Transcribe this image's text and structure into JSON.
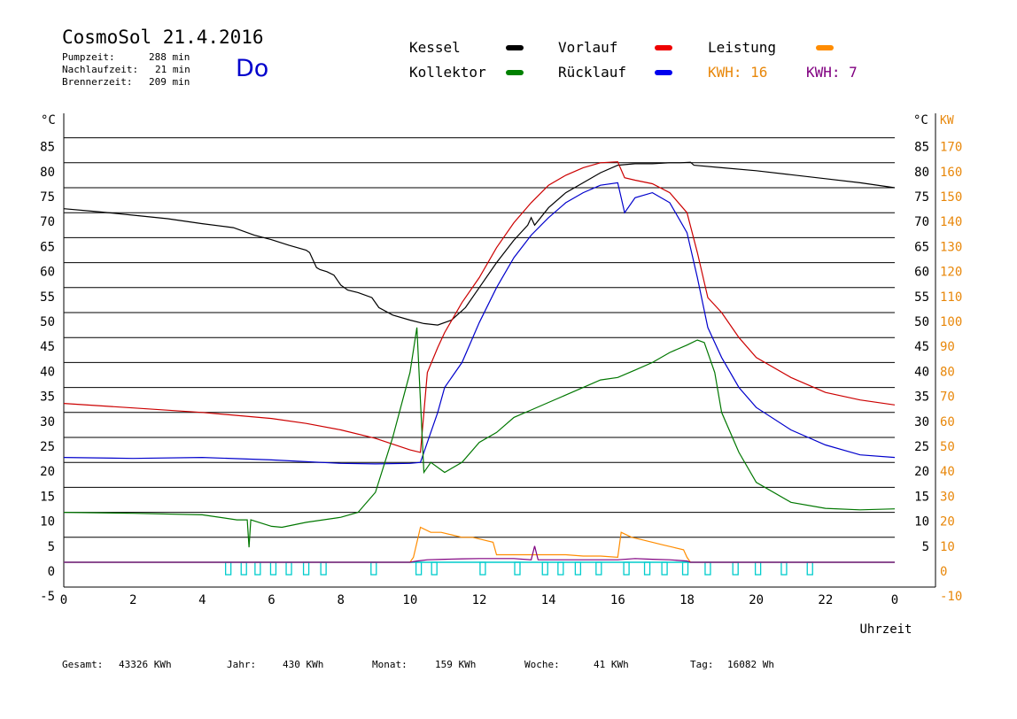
{
  "header": {
    "title": "CosmoSol 21.4.2016",
    "day": "Do",
    "pump_label": "Pumpzeit:",
    "pump_value": "288 min",
    "nachlauf_label": "Nachlaufzeit:",
    "nachlauf_value": "21 min",
    "brenner_label": "Brennerzeit:",
    "brenner_value": "209 min"
  },
  "legend": {
    "kessel": "Kessel",
    "vorlauf": "Vorlauf",
    "leistung": "Leistung",
    "kollektor": "Kollektor",
    "ruecklauf": "Rücklauf",
    "kwh1": "KWH: 16",
    "kwh2": "KWH: 7"
  },
  "footer": {
    "gesamt_label": "Gesamt:",
    "gesamt_value": "43326 KWh",
    "jahr_label": "Jahr:",
    "jahr_value": "430 KWh",
    "monat_label": "Monat:",
    "monat_value": "159 KWh",
    "woche_label": "Woche:",
    "woche_value": "41 KWh",
    "tag_label": "Tag:",
    "tag_value": "16082 Wh"
  },
  "colors": {
    "kessel": "#000000",
    "vorlauf": "#cc0000",
    "ruecklauf": "#0000cc",
    "kollektor": "#007700",
    "leistung": "#ff8c00",
    "kwh2": "#800080",
    "pump": "#00cccc",
    "axis_right": "#e8870a"
  },
  "chart_data": {
    "type": "line",
    "title": "CosmoSol 21.4.2016",
    "xlabel": "Uhrzeit",
    "ylabel_left": "°C",
    "ylabel_right_1": "°C",
    "ylabel_right_2": "KW",
    "xlim": [
      0,
      24
    ],
    "ylim": [
      -5,
      90
    ],
    "ylim_power": [
      -10,
      180
    ],
    "x_ticks": [
      "0",
      "2",
      "4",
      "6",
      "8",
      "10",
      "12",
      "14",
      "16",
      "18",
      "20",
      "22",
      "0"
    ],
    "y_ticks_left": [
      "85",
      "80",
      "75",
      "70",
      "65",
      "60",
      "55",
      "50",
      "45",
      "40",
      "35",
      "30",
      "25",
      "20",
      "15",
      "10",
      "5",
      "0",
      "-5"
    ],
    "y_ticks_right_c": [
      "85",
      "80",
      "75",
      "70",
      "65",
      "60",
      "55",
      "50",
      "45",
      "40",
      "35",
      "30",
      "25",
      "20",
      "15",
      "10",
      "5"
    ],
    "y_ticks_right_kw": [
      "170",
      "160",
      "150",
      "140",
      "130",
      "120",
      "110",
      "100",
      "90",
      "80",
      "70",
      "60",
      "50",
      "40",
      "30",
      "20",
      "10",
      "0",
      "-10"
    ],
    "grid": true,
    "series": [
      {
        "name": "Kessel",
        "x": [
          0,
          1,
          2,
          3,
          4,
          4.9,
          5.5,
          6,
          6.5,
          7,
          7.1,
          7.3,
          7.4,
          7.6,
          7.8,
          8,
          8.2,
          8.5,
          8.9,
          9.1,
          9.5,
          10,
          10.4,
          10.8,
          11.2,
          11.6,
          12,
          12.5,
          13,
          13.4,
          13.5,
          13.6,
          14,
          14.5,
          15,
          15.5,
          16,
          16.5,
          17,
          17.5,
          17.8,
          18.1,
          18.2,
          19,
          20,
          21,
          22,
          23,
          24
        ],
        "y": [
          70.8,
          70.2,
          69.5,
          68.8,
          67.8,
          67,
          65.5,
          64.6,
          63.5,
          62.5,
          62,
          59,
          58.6,
          58.2,
          57.5,
          55.5,
          54.5,
          54,
          53,
          51,
          49.5,
          48.5,
          47.8,
          47.5,
          48.5,
          51,
          55,
          60,
          64.5,
          67.5,
          69,
          67.5,
          71,
          74,
          76,
          78,
          79.5,
          79.8,
          79.8,
          80,
          80,
          80.1,
          79.5,
          79,
          78.4,
          77.6,
          76.8,
          76,
          75
        ]
      },
      {
        "name": "Vorlauf",
        "x": [
          0,
          2,
          4,
          6,
          7,
          8,
          9,
          10,
          10.3,
          10.5,
          10.8,
          11,
          11.5,
          12,
          12.5,
          13,
          13.5,
          14,
          14.5,
          15,
          15.5,
          16,
          16.2,
          16.5,
          17,
          17.5,
          18,
          18.3,
          18.6,
          19,
          19.5,
          20,
          21,
          22,
          23,
          24
        ],
        "y": [
          31.8,
          30.9,
          30,
          28.8,
          27.8,
          26.5,
          24.8,
          22.5,
          22,
          38,
          43,
          46,
          52,
          57,
          63,
          68,
          72,
          75.5,
          77.5,
          79,
          80,
          80.2,
          77,
          76.5,
          75.8,
          74,
          70,
          62,
          53,
          50,
          45,
          41,
          37,
          34,
          32.5,
          31.5
        ]
      },
      {
        "name": "Rücklauf",
        "x": [
          0,
          2,
          4,
          6,
          8,
          9,
          10,
          10.3,
          10.5,
          10.8,
          11,
          11.5,
          12,
          12.5,
          13,
          13.5,
          14,
          14.5,
          15,
          15.5,
          16,
          16.2,
          16.5,
          17,
          17.5,
          18,
          18.3,
          18.6,
          19,
          19.5,
          20,
          21,
          22,
          23,
          24
        ],
        "y": [
          21,
          20.8,
          21,
          20.5,
          19.8,
          19.7,
          19.8,
          20,
          24,
          30,
          35,
          40,
          48,
          55,
          61,
          65.5,
          69,
          72,
          74,
          75.5,
          76,
          70,
          73,
          74,
          72,
          66,
          57,
          47,
          41,
          35,
          31,
          26.5,
          23.5,
          21.5,
          21
        ]
      },
      {
        "name": "Kollektor",
        "x": [
          0,
          2,
          4,
          5,
          5.3,
          5.35,
          5.4,
          6,
          6.3,
          7,
          8,
          8.5,
          9,
          9.5,
          10,
          10.2,
          10.4,
          10.6,
          11,
          11.5,
          12,
          12.5,
          13,
          13.5,
          14,
          14.5,
          15,
          15.5,
          16,
          16.5,
          17,
          17.5,
          18,
          18.3,
          18.5,
          18.8,
          19,
          19.5,
          20,
          21,
          22,
          23,
          24
        ],
        "y": [
          10,
          9.8,
          9.5,
          8.5,
          8.5,
          3,
          8.5,
          7.2,
          7,
          8,
          9,
          10,
          14,
          25,
          38,
          47,
          18,
          20,
          18,
          20,
          24,
          26,
          29,
          30.5,
          32,
          33.5,
          35,
          36.5,
          37,
          38.5,
          40,
          42,
          43.5,
          44.5,
          44,
          38,
          30,
          22,
          16,
          12,
          10.8,
          10.5,
          10.7
        ]
      },
      {
        "name": "Leistung",
        "x": [
          0,
          10,
          10.1,
          10.3,
          10.6,
          10.9,
          11.2,
          11.5,
          11.8,
          12.1,
          12.4,
          12.5,
          13,
          13.5,
          14,
          14.5,
          15,
          15.5,
          16,
          16.1,
          16.4,
          16.7,
          17,
          17.3,
          17.6,
          17.9,
          18,
          18.1,
          24
        ],
        "y": [
          0,
          0,
          2,
          14,
          12,
          12,
          11,
          10,
          10,
          9,
          8,
          3,
          3,
          3,
          3,
          3,
          2.5,
          2.5,
          2,
          12,
          10,
          9,
          8,
          7,
          6,
          5,
          2,
          0,
          0
        ]
      },
      {
        "name": "KWH: 7",
        "x": [
          0,
          10,
          10.2,
          10.5,
          11,
          11.5,
          12,
          12.5,
          13,
          13.5,
          13.6,
          13.7,
          14,
          15,
          16,
          16.5,
          17,
          17.5,
          18,
          18.1,
          24
        ],
        "y": [
          0,
          0,
          0.5,
          1,
          1.2,
          1.4,
          1.5,
          1.5,
          1.5,
          1,
          6.5,
          1,
          1,
          1,
          1,
          1.5,
          1.2,
          1,
          0.5,
          0,
          0
        ]
      }
    ],
    "pump_pulse_hours": [
      4.75,
      5.2,
      5.6,
      6.05,
      6.5,
      7,
      7.5,
      8.95,
      10.25,
      10.7,
      12.1,
      13.1,
      13.9,
      14.35,
      14.85,
      15.45,
      16.25,
      16.85,
      17.35,
      17.95,
      18.6,
      19.4,
      20.05,
      20.8,
      21.55
    ]
  }
}
